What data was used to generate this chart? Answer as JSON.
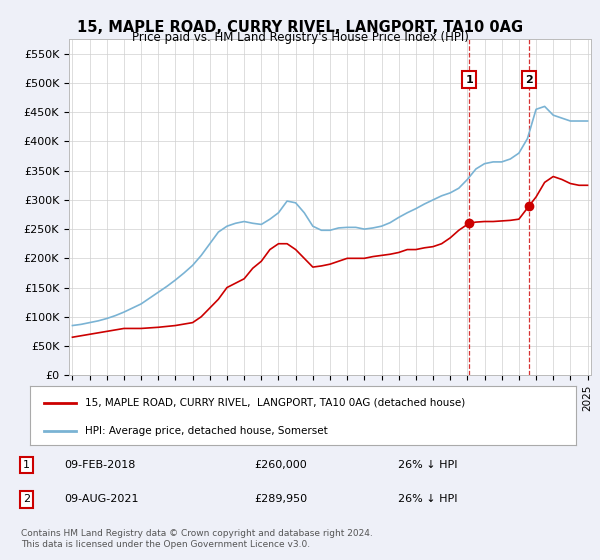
{
  "title": "15, MAPLE ROAD, CURRY RIVEL, LANGPORT, TA10 0AG",
  "subtitle": "Price paid vs. HM Land Registry's House Price Index (HPI)",
  "ylabel_ticks": [
    "£0",
    "£50K",
    "£100K",
    "£150K",
    "£200K",
    "£250K",
    "£300K",
    "£350K",
    "£400K",
    "£450K",
    "£500K",
    "£550K"
  ],
  "ytick_values": [
    0,
    50000,
    100000,
    150000,
    200000,
    250000,
    300000,
    350000,
    400000,
    450000,
    500000,
    550000
  ],
  "ylim": [
    0,
    575000
  ],
  "hpi_color": "#7ab3d4",
  "price_color": "#cc0000",
  "legend_label_price": "15, MAPLE ROAD, CURRY RIVEL,  LANGPORT, TA10 0AG (detached house)",
  "legend_label_hpi": "HPI: Average price, detached house, Somerset",
  "annotation1_label": "1",
  "annotation1_date": "09-FEB-2018",
  "annotation1_price": "£260,000",
  "annotation1_hpi": "26% ↓ HPI",
  "annotation2_label": "2",
  "annotation2_date": "09-AUG-2021",
  "annotation2_price": "£289,950",
  "annotation2_hpi": "26% ↓ HPI",
  "footer": "Contains HM Land Registry data © Crown copyright and database right 2024.\nThis data is licensed under the Open Government Licence v3.0.",
  "hpi_years": [
    1995,
    1995.5,
    1996,
    1996.5,
    1997,
    1997.5,
    1998,
    1998.5,
    1999,
    1999.5,
    2000,
    2000.5,
    2001,
    2001.5,
    2002,
    2002.5,
    2003,
    2003.5,
    2004,
    2004.5,
    2005,
    2005.5,
    2006,
    2006.5,
    2007,
    2007.5,
    2008,
    2008.5,
    2009,
    2009.5,
    2010,
    2010.5,
    2011,
    2011.5,
    2012,
    2012.5,
    2013,
    2013.5,
    2014,
    2014.5,
    2015,
    2015.5,
    2016,
    2016.5,
    2017,
    2017.5,
    2018,
    2018.5,
    2019,
    2019.5,
    2020,
    2020.5,
    2021,
    2021.5,
    2022,
    2022.5,
    2023,
    2023.5,
    2024,
    2024.5,
    2025
  ],
  "hpi_values": [
    85000,
    87000,
    90000,
    93000,
    97000,
    102000,
    108000,
    115000,
    122000,
    132000,
    142000,
    152000,
    163000,
    175000,
    188000,
    205000,
    225000,
    245000,
    255000,
    260000,
    263000,
    260000,
    258000,
    267000,
    278000,
    298000,
    295000,
    278000,
    255000,
    248000,
    248000,
    252000,
    253000,
    253000,
    250000,
    252000,
    255000,
    261000,
    270000,
    278000,
    285000,
    293000,
    300000,
    307000,
    312000,
    320000,
    335000,
    353000,
    362000,
    365000,
    365000,
    370000,
    380000,
    405000,
    455000,
    460000,
    445000,
    440000,
    435000,
    435000,
    435000
  ],
  "price_years": [
    1995,
    1996,
    1997,
    1998,
    1999,
    2000,
    2001,
    2002,
    2002.5,
    2003,
    2003.5,
    2004,
    2005,
    2005.5,
    2006,
    2006.5,
    2007,
    2007.5,
    2008,
    2008.5,
    2009,
    2009.5,
    2010,
    2010.5,
    2011,
    2011.5,
    2012,
    2012.5,
    2013,
    2013.5,
    2014,
    2014.5,
    2015,
    2015.5,
    2016,
    2016.5,
    2017,
    2017.5,
    2018,
    2018.1,
    2018.5,
    2019,
    2019.5,
    2020,
    2020.5,
    2021,
    2021.6,
    2022,
    2022.5,
    2023,
    2023.5,
    2024,
    2024.5,
    2025
  ],
  "price_values": [
    65000,
    70000,
    75000,
    80000,
    80000,
    82000,
    85000,
    90000,
    100000,
    115000,
    130000,
    150000,
    165000,
    183000,
    195000,
    215000,
    225000,
    225000,
    215000,
    200000,
    185000,
    187000,
    190000,
    195000,
    200000,
    200000,
    200000,
    203000,
    205000,
    207000,
    210000,
    215000,
    215000,
    218000,
    220000,
    225000,
    235000,
    248000,
    258000,
    260000,
    262000,
    263000,
    263000,
    264000,
    265000,
    267000,
    290000,
    305000,
    330000,
    340000,
    335000,
    328000,
    325000,
    325000
  ],
  "sale1_x": 2018.1,
  "sale1_y": 260000,
  "sale2_x": 2021.6,
  "sale2_y": 290000,
  "vline1_x": 2018.1,
  "vline2_x": 2021.6,
  "bg_color": "#eef0f8",
  "plot_bg": "#ffffff",
  "grid_color": "#d0d0d0",
  "xlim_left": 1994.8,
  "xlim_right": 2025.2
}
